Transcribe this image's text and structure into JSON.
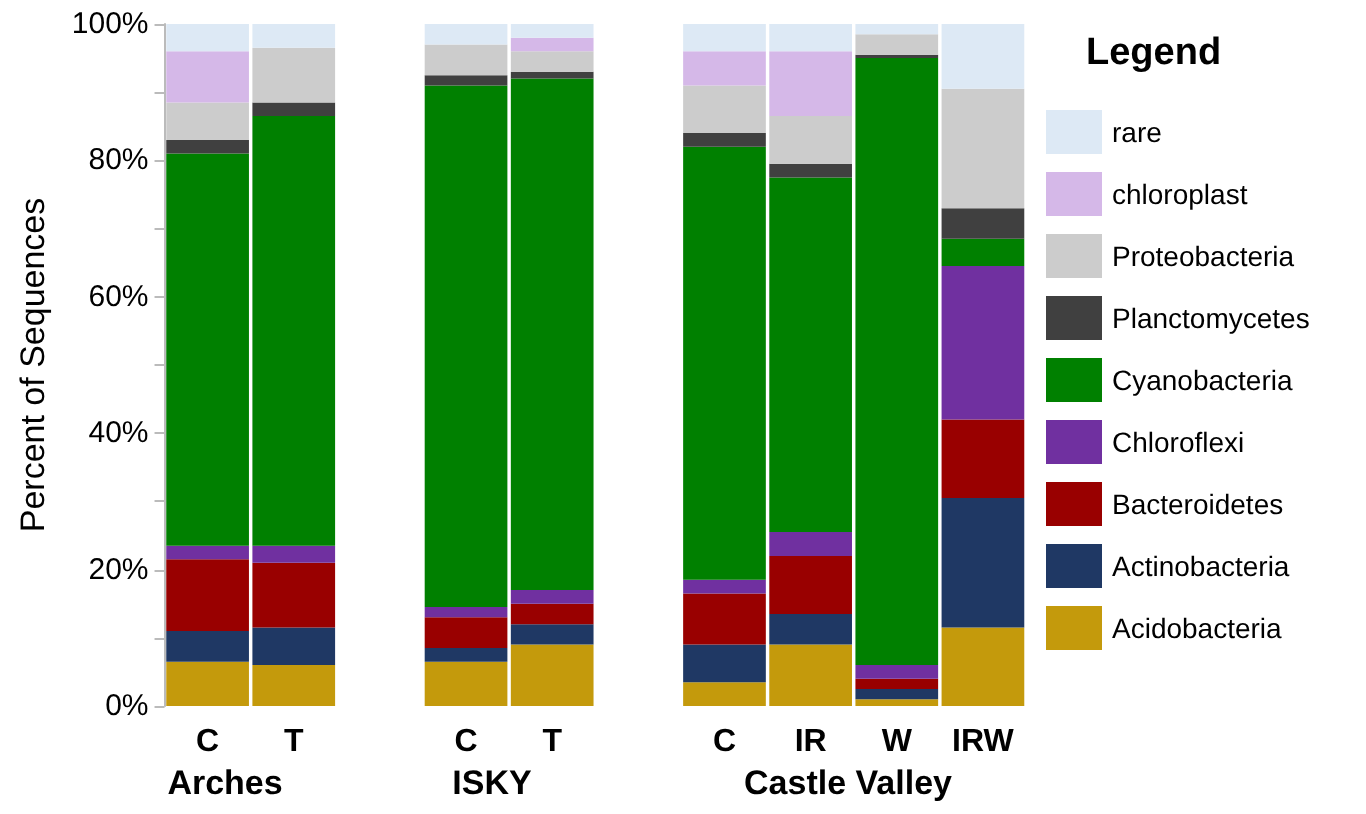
{
  "chart_data": {
    "type": "bar",
    "stacked": true,
    "ylabel": "Percent of Sequences",
    "legend_title": "Legend",
    "legend": "right",
    "grid": false,
    "categories": [
      "C",
      "T",
      null,
      "C",
      "T",
      null,
      "C",
      "IR",
      "W",
      "IRW"
    ],
    "annotations": [
      "Arches",
      "ISKY",
      "Castle Valley"
    ],
    "ylim": [
      0,
      100
    ],
    "yticks": [
      {
        "value": 0,
        "label": "0%"
      },
      {
        "value": 10,
        "label": null
      },
      {
        "value": 20,
        "label": "20%"
      },
      {
        "value": 30,
        "label": null
      },
      {
        "value": 40,
        "label": "40%"
      },
      {
        "value": 50,
        "label": null
      },
      {
        "value": 60,
        "label": "60%"
      },
      {
        "value": 70,
        "label": null
      },
      {
        "value": 80,
        "label": "80%"
      },
      {
        "value": 90,
        "label": null
      },
      {
        "value": 100,
        "label": "100%"
      }
    ],
    "series": [
      {
        "name": "Acidobacteria",
        "color": "#c49a0c",
        "values": [
          6.5,
          6,
          null,
          6.5,
          9,
          null,
          3.5,
          9,
          1,
          11.5
        ]
      },
      {
        "name": "Actinobacteria",
        "color": "#1f3864",
        "values": [
          4.5,
          5.5,
          null,
          2,
          3,
          null,
          5.5,
          4.5,
          1.5,
          19
        ]
      },
      {
        "name": "Bacteroidetes",
        "color": "#990000",
        "values": [
          10.5,
          9.5,
          null,
          4.5,
          3,
          null,
          7.5,
          8.5,
          1.5,
          11.5
        ]
      },
      {
        "name": "Chloroflexi",
        "color": "#7030a0",
        "values": [
          2,
          2.5,
          null,
          1.5,
          2,
          null,
          2,
          3.5,
          2,
          22.5
        ]
      },
      {
        "name": "Cyanobacteria",
        "color": "#008000",
        "values": [
          57.5,
          63,
          null,
          76.5,
          75,
          null,
          63.5,
          52,
          89,
          4
        ]
      },
      {
        "name": "Planctomycetes",
        "color": "#404040",
        "values": [
          2,
          2,
          null,
          1.5,
          1,
          null,
          2,
          2,
          0.5,
          4.5
        ]
      },
      {
        "name": "Proteobacteria",
        "color": "#cccccc",
        "values": [
          5.5,
          8,
          null,
          4.5,
          3,
          null,
          7,
          7,
          3,
          17.5
        ]
      },
      {
        "name": "chloroplast",
        "color": "#d5b8e8",
        "values": [
          7.5,
          0,
          null,
          0,
          2,
          null,
          5,
          9.5,
          0,
          0
        ]
      },
      {
        "name": "rare",
        "color": "#dde9f5",
        "values": [
          4,
          3.5,
          null,
          3,
          2,
          null,
          4,
          4,
          1.5,
          9.5
        ]
      }
    ]
  }
}
